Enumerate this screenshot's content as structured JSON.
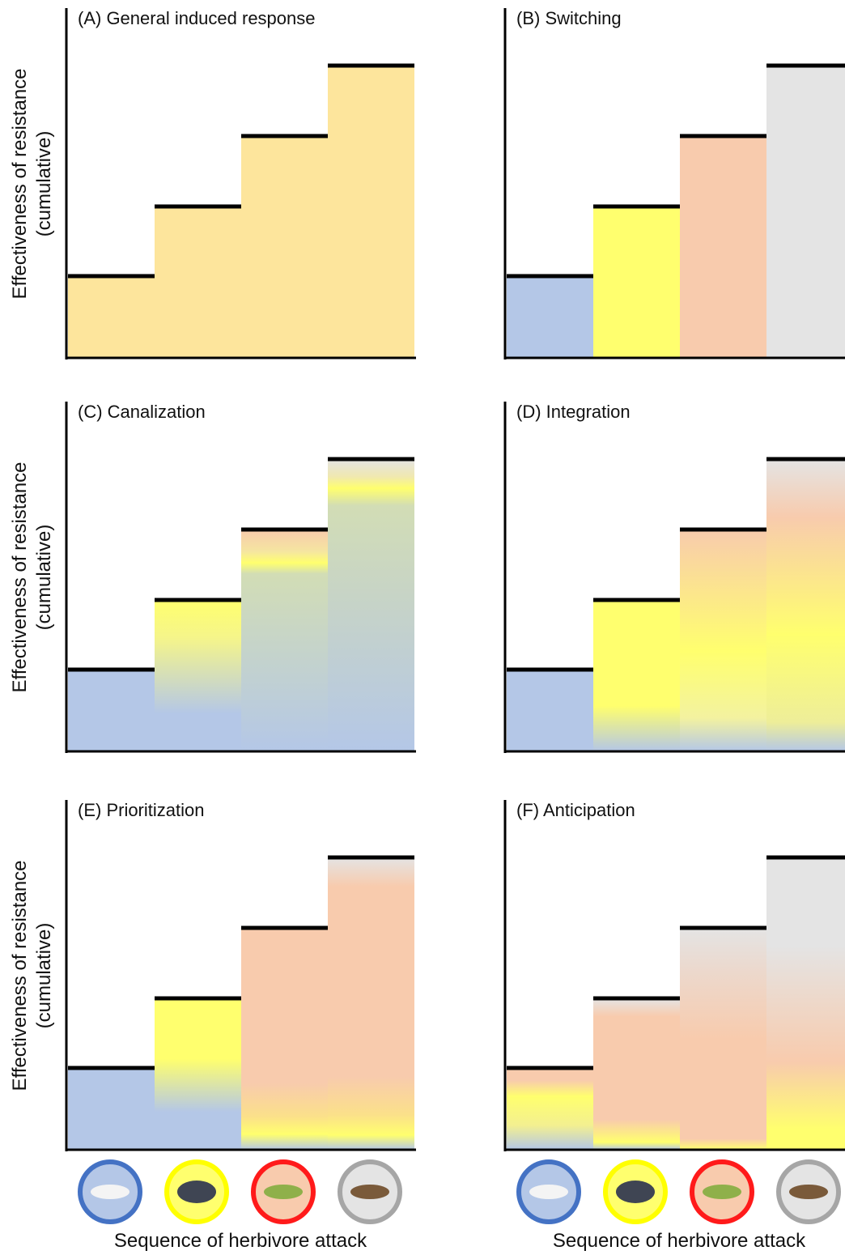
{
  "panels": [
    {
      "title": "(A) General induced response"
    },
    {
      "title": "(B) Switching"
    },
    {
      "title": "(C) Canalization"
    },
    {
      "title": "(D) Integration"
    },
    {
      "title": "(E) Prioritization"
    },
    {
      "title": "(F) Anticipation"
    }
  ],
  "y_axis_label": {
    "line1": "Effectiveness of resistance",
    "line2": "(cumulative)"
  },
  "x_axis_label": "Sequence of herbivore attack"
}
